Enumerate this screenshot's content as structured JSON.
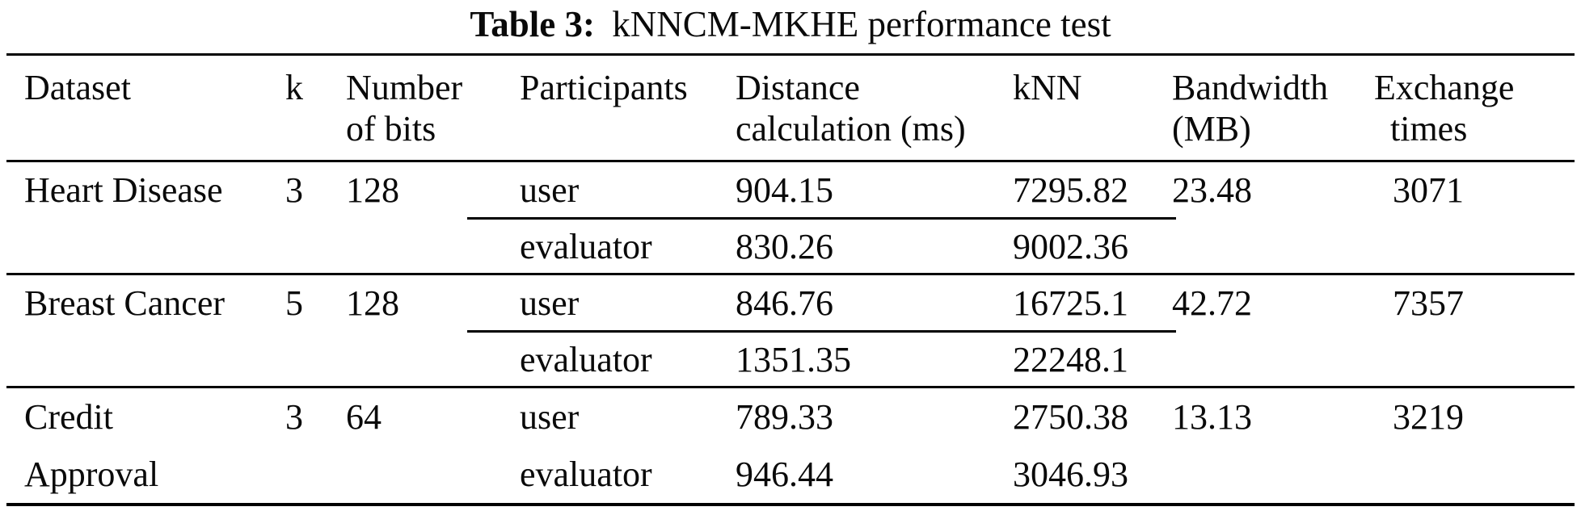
{
  "title": {
    "prefix": "Table 3:",
    "text": "kNNCM-MKHE performance test"
  },
  "columns": {
    "dataset": "Dataset",
    "k": "k",
    "bits": [
      "Number",
      "of bits"
    ],
    "participants": "Participants",
    "distance": [
      "Distance",
      "calculation (ms)"
    ],
    "knn": "kNN",
    "bandwidth": [
      "Bandwidth",
      "(MB)"
    ],
    "exchange": [
      "Exchange",
      "times"
    ]
  },
  "rows": [
    {
      "dataset_line1": "Heart Disease",
      "dataset_line2": "",
      "k": "3",
      "bits": "128",
      "user": {
        "participant": "user",
        "distance": "904.15",
        "knn": "7295.82"
      },
      "evaluator": {
        "participant": "evaluator",
        "distance": "830.26",
        "knn": "9002.36"
      },
      "bandwidth": "23.48",
      "exchange": "3071"
    },
    {
      "dataset_line1": "Breast Cancer",
      "dataset_line2": "",
      "k": "5",
      "bits": "128",
      "user": {
        "participant": "user",
        "distance": "846.76",
        "knn": "16725.1"
      },
      "evaluator": {
        "participant": "evaluator",
        "distance": "1351.35",
        "knn": "22248.1"
      },
      "bandwidth": "42.72",
      "exchange": "7357"
    },
    {
      "dataset_line1": "Credit",
      "dataset_line2": "Approval",
      "k": "3",
      "bits": "64",
      "user": {
        "participant": "user",
        "distance": "789.33",
        "knn": "2750.38"
      },
      "evaluator": {
        "participant": "evaluator",
        "distance": "946.44",
        "knn": "3046.93"
      },
      "bandwidth": "13.13",
      "exchange": "3219"
    }
  ],
  "colors": {
    "background": "#ffffff",
    "text": "#0a0a0a",
    "rule": "#000000"
  }
}
